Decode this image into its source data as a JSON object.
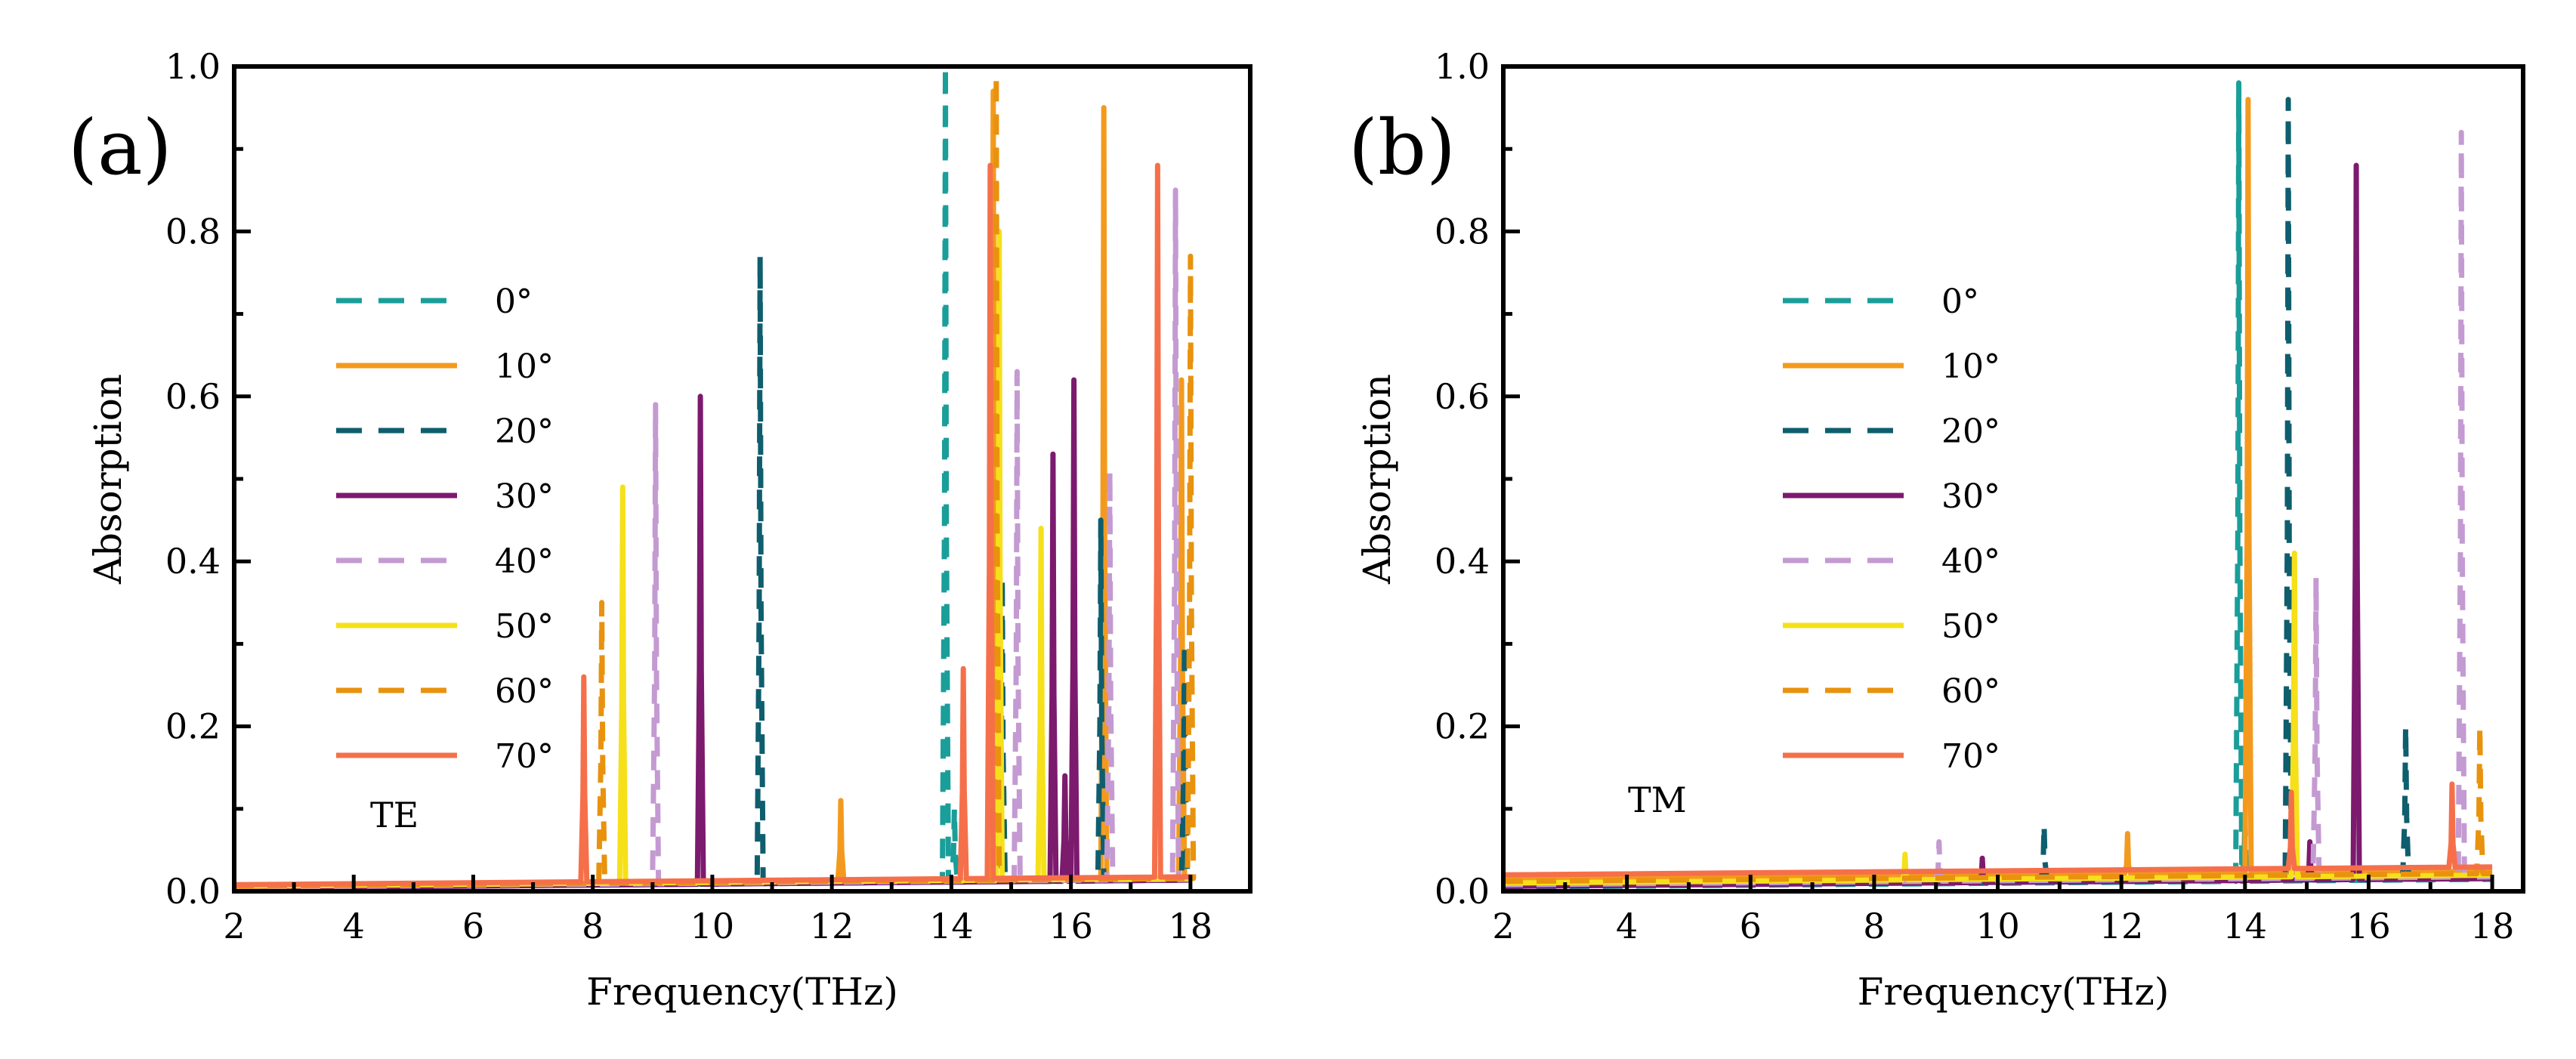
{
  "figure": {
    "panels": [
      "(a)",
      "(b)"
    ]
  },
  "chart_data": [
    {
      "type": "line",
      "panel_label": "(a)",
      "mode_label": "TE",
      "xlabel": "Frequency(THz)",
      "ylabel": "Absorption",
      "xlim": [
        2,
        19
      ],
      "ylim": [
        0,
        1
      ],
      "xticks": [
        2,
        4,
        6,
        8,
        10,
        12,
        14,
        16,
        18
      ],
      "yticks": [
        "0.0",
        "0.2",
        "0.4",
        "0.6",
        "0.8",
        "1.0"
      ],
      "series": [
        {
          "name": "0°",
          "color": "#1a9e9a",
          "dash": true,
          "baseline": 0.005,
          "peaks": [
            [
              13.9,
              1.0
            ],
            [
              14.05,
              0.1
            ]
          ]
        },
        {
          "name": "10°",
          "color": "#f39a1e",
          "dash": false,
          "baseline": 0.006,
          "peaks": [
            [
              12.15,
              0.11
            ],
            [
              14.7,
              0.97
            ],
            [
              16.55,
              0.95
            ],
            [
              17.85,
              0.62
            ]
          ]
        },
        {
          "name": "20°",
          "color": "#0e5e6e",
          "dash": true,
          "baseline": 0.004,
          "peaks": [
            [
              10.8,
              0.77
            ],
            [
              14.85,
              0.38
            ],
            [
              16.5,
              0.45
            ],
            [
              17.9,
              0.3
            ]
          ]
        },
        {
          "name": "30°",
          "color": "#7c1a6e",
          "dash": false,
          "baseline": 0.004,
          "peaks": [
            [
              9.8,
              0.6
            ],
            [
              15.7,
              0.53
            ],
            [
              15.9,
              0.14
            ],
            [
              16.05,
              0.62
            ]
          ]
        },
        {
          "name": "40°",
          "color": "#c49ad2",
          "dash": true,
          "baseline": 0.005,
          "peaks": [
            [
              9.05,
              0.59
            ],
            [
              15.1,
              0.63
            ],
            [
              16.65,
              0.51
            ],
            [
              17.75,
              0.85
            ]
          ]
        },
        {
          "name": "50°",
          "color": "#f5e01a",
          "dash": false,
          "baseline": 0.006,
          "peaks": [
            [
              8.5,
              0.49
            ],
            [
              14.8,
              0.8
            ],
            [
              15.5,
              0.44
            ]
          ]
        },
        {
          "name": "60°",
          "color": "#e8920e",
          "dash": true,
          "baseline": 0.006,
          "peaks": [
            [
              8.15,
              0.35
            ],
            [
              14.75,
              0.99
            ],
            [
              18.0,
              0.77
            ]
          ]
        },
        {
          "name": "70°",
          "color": "#f5704a",
          "dash": false,
          "baseline": 0.008,
          "peaks": [
            [
              7.85,
              0.26
            ],
            [
              14.2,
              0.27
            ],
            [
              14.65,
              0.88
            ],
            [
              17.45,
              0.88
            ]
          ]
        }
      ]
    },
    {
      "type": "line",
      "panel_label": "(b)",
      "mode_label": "TM",
      "xlabel": "Frequency(THz)",
      "ylabel": "Absorption",
      "xlim": [
        2,
        18.5
      ],
      "ylim": [
        0,
        1
      ],
      "xticks": [
        2,
        4,
        6,
        8,
        10,
        12,
        14,
        16,
        18
      ],
      "yticks": [
        "0.0",
        "0.2",
        "0.4",
        "0.6",
        "0.8",
        "1.0"
      ],
      "series": [
        {
          "name": "0°",
          "color": "#1a9e9a",
          "dash": true,
          "baseline": 0.005,
          "peaks": [
            [
              13.9,
              0.98
            ],
            [
              14.0,
              0.09
            ]
          ]
        },
        {
          "name": "10°",
          "color": "#f39a1e",
          "dash": false,
          "baseline": 0.015,
          "peaks": [
            [
              12.1,
              0.07
            ],
            [
              14.05,
              0.96
            ]
          ]
        },
        {
          "name": "20°",
          "color": "#0e5e6e",
          "dash": true,
          "baseline": 0.006,
          "peaks": [
            [
              10.75,
              0.08
            ],
            [
              14.7,
              0.96
            ],
            [
              16.6,
              0.2
            ]
          ]
        },
        {
          "name": "30°",
          "color": "#7c1a6e",
          "dash": false,
          "baseline": 0.006,
          "peaks": [
            [
              9.75,
              0.04
            ],
            [
              15.05,
              0.06
            ],
            [
              15.8,
              0.88
            ]
          ]
        },
        {
          "name": "40°",
          "color": "#c49ad2",
          "dash": true,
          "baseline": 0.008,
          "peaks": [
            [
              9.05,
              0.06
            ],
            [
              15.15,
              0.38
            ],
            [
              17.5,
              0.92
            ]
          ]
        },
        {
          "name": "50°",
          "color": "#f5e01a",
          "dash": false,
          "baseline": 0.01,
          "peaks": [
            [
              8.5,
              0.045
            ],
            [
              14.8,
              0.41
            ]
          ]
        },
        {
          "name": "60°",
          "color": "#e8920e",
          "dash": true,
          "baseline": 0.012,
          "peaks": [
            [
              17.8,
              0.2
            ]
          ]
        },
        {
          "name": "70°",
          "color": "#f5704a",
          "dash": false,
          "baseline": 0.02,
          "peaks": [
            [
              14.75,
              0.12
            ],
            [
              17.35,
              0.13
            ]
          ]
        }
      ]
    }
  ]
}
